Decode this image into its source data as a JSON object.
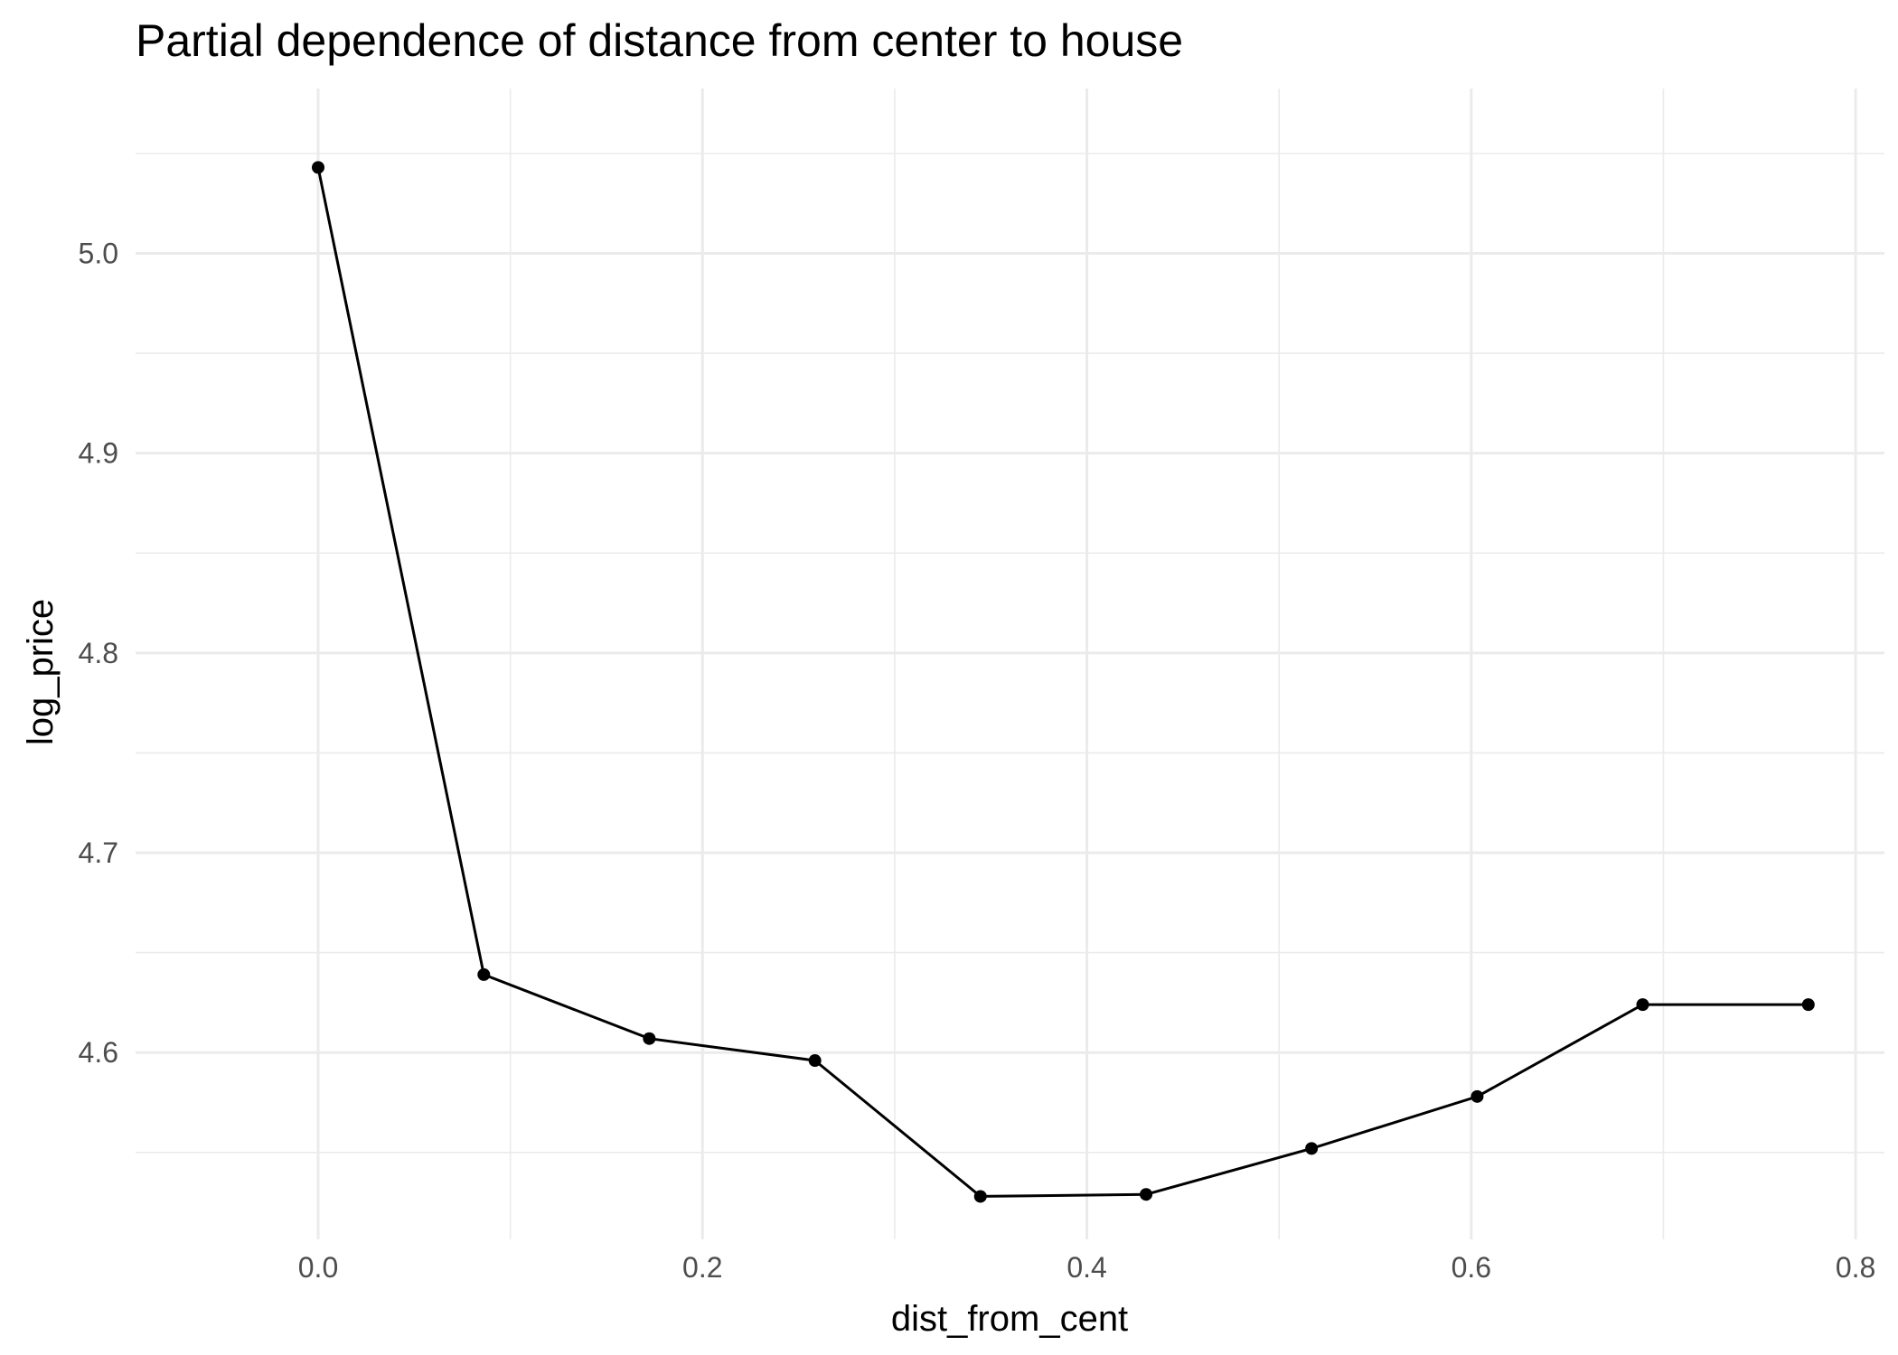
{
  "chart_data": {
    "type": "line",
    "title": "Partial dependence of distance from center to house",
    "xlabel": "dist_from_cent",
    "ylabel": "log_price",
    "xlim": [
      -0.095,
      0.815
    ],
    "ylim": [
      4.5065,
      5.0825
    ],
    "x_ticks": [
      0.0,
      0.2,
      0.4,
      0.6,
      0.8
    ],
    "x_tick_labels": [
      "0.0",
      "0.2",
      "0.4",
      "0.6",
      "0.8"
    ],
    "x_minor_ticks": [
      0.1,
      0.3,
      0.5,
      0.7
    ],
    "y_ticks": [
      4.6,
      4.7,
      4.8,
      4.9,
      5.0
    ],
    "y_tick_labels": [
      "4.6",
      "4.7",
      "4.8",
      "4.9",
      "5.0"
    ],
    "y_minor_ticks": [
      4.55,
      4.65,
      4.75,
      4.85,
      4.95,
      5.05
    ],
    "grid": true,
    "legend": "none",
    "colors": {
      "line": "#000000",
      "grid": "#ebebeb",
      "tick_text": "#4d4d4d"
    },
    "series": [
      {
        "x": [
          0.0,
          0.0862,
          0.1723,
          0.2585,
          0.3446,
          0.4308,
          0.5169,
          0.6031,
          0.6892,
          0.7754
        ],
        "values": [
          5.043,
          4.639,
          4.607,
          4.596,
          4.528,
          4.529,
          4.552,
          4.578,
          4.624,
          4.624
        ]
      }
    ]
  }
}
